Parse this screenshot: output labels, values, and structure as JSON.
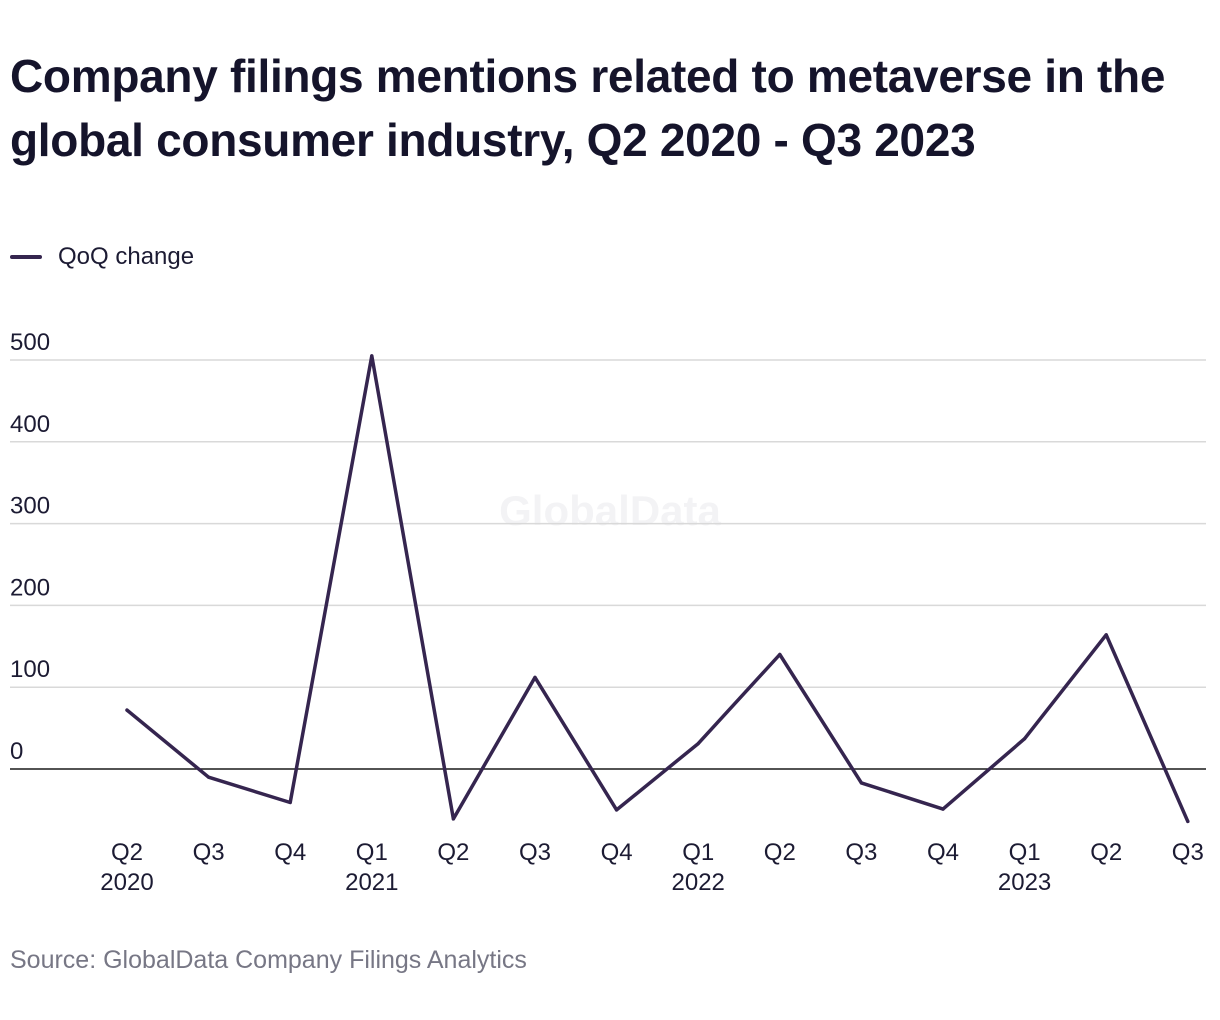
{
  "title": "Company filings mentions related to metaverse in the global consumer industry, Q2 2020 - Q3 2023",
  "legend": {
    "label": "QoQ change"
  },
  "watermark": "GlobalData",
  "source": "Source: GlobalData Company Filings Analytics",
  "colors": {
    "line": "#35254f",
    "grid": "#d9d9d9",
    "zero_line": "#1a1a1a",
    "text": "#1c1b33",
    "muted": "#777785"
  },
  "chart_data": {
    "type": "line",
    "categories": [
      "Q2",
      "Q3",
      "Q4",
      "Q1",
      "Q2",
      "Q3",
      "Q4",
      "Q1",
      "Q2",
      "Q3",
      "Q4",
      "Q1",
      "Q2",
      "Q3"
    ],
    "years": [
      "2020",
      "",
      "",
      "2021",
      "",
      "",
      "",
      "2022",
      "",
      "",
      "",
      "2023",
      "",
      ""
    ],
    "series": [
      {
        "name": "QoQ change",
        "values": [
          72,
          -10,
          -41,
          505,
          -61,
          112,
          -50,
          31,
          140,
          -17,
          -49,
          37,
          164,
          -64
        ]
      }
    ],
    "yticks": [
      0,
      100,
      200,
      300,
      400,
      500
    ],
    "ylim": [
      -80,
      520
    ],
    "grid": true,
    "legend_position": "top-left",
    "xlabel": "",
    "ylabel": ""
  }
}
